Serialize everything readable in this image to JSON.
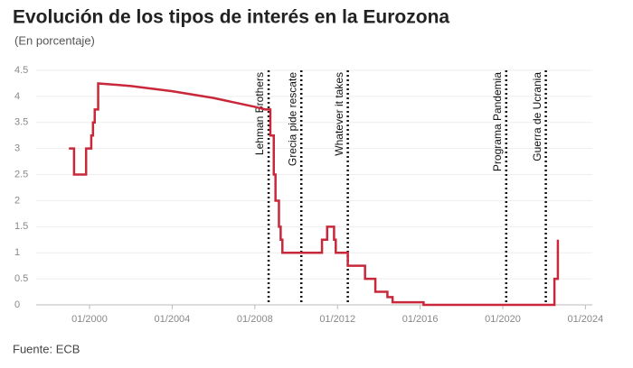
{
  "chart_data": {
    "type": "line",
    "title": "Evolución de los tipos de interés en la Eurozona",
    "subtitle": "(En porcentaje)",
    "source": "Fuente: ECB",
    "xlim": [
      "06/1997",
      "05/2024"
    ],
    "xticks": [
      "01/2000",
      "01/2004",
      "01/2008",
      "01/2012",
      "01/2016",
      "01/2020",
      "01/2024"
    ],
    "ylim": [
      0,
      4.5
    ],
    "yticks": [
      0,
      0.5,
      1,
      1.5,
      2,
      2.5,
      3,
      3.5,
      4,
      4.5
    ],
    "grid": true,
    "series": [
      {
        "color": "#c8283a",
        "x": [
          "01/1999",
          "04/1999",
          "04/1999",
          "11/1999",
          "11/1999",
          "02/2000",
          "02/2000",
          "03/2000",
          "03/2000",
          "04/2000",
          "04/2000",
          "06/2000",
          "06/2000",
          "01/2002",
          "01/2004",
          "01/2006",
          "01/2008",
          "07/2008",
          "10/2008",
          "10/2008",
          "12/2008",
          "12/2008",
          "01/2009",
          "01/2009",
          "03/2009",
          "03/2009",
          "04/2009",
          "04/2009",
          "05/2009",
          "05/2009",
          "04/2011",
          "04/2011",
          "07/2011",
          "07/2011",
          "11/2011",
          "11/2011",
          "12/2011",
          "12/2011",
          "07/2012",
          "07/2012",
          "05/2013",
          "05/2013",
          "11/2013",
          "11/2013",
          "06/2014",
          "06/2014",
          "09/2014",
          "09/2014",
          "03/2016",
          "03/2016",
          "07/2022",
          "07/2022",
          "09/2022",
          "09/2022"
        ],
        "values": [
          3,
          3,
          2.5,
          2.5,
          3,
          3,
          3.25,
          3.25,
          3.5,
          3.5,
          3.75,
          3.75,
          4.25,
          4.2,
          4.1,
          3.97,
          3.8,
          3.75,
          3.75,
          3.25,
          3.25,
          2.5,
          2.5,
          2,
          2,
          1.5,
          1.5,
          1.25,
          1.25,
          1,
          1,
          1.25,
          1.25,
          1.5,
          1.5,
          1.25,
          1.25,
          1,
          1,
          0.75,
          0.75,
          0.5,
          0.5,
          0.25,
          0.25,
          0.15,
          0.15,
          0.05,
          0.05,
          0,
          0,
          0.5,
          0.5,
          1.25
        ]
      }
    ],
    "annotations": [
      {
        "x": "09/2008",
        "label": "Lehman Brothers"
      },
      {
        "x": "04/2010",
        "label": "Grecia pide rescate"
      },
      {
        "x": "07/2012",
        "label": "Whatever it takes"
      },
      {
        "x": "03/2020",
        "label": "Programa Pandemia"
      },
      {
        "x": "02/2022",
        "label": "Guerra de Ucrania"
      }
    ]
  }
}
